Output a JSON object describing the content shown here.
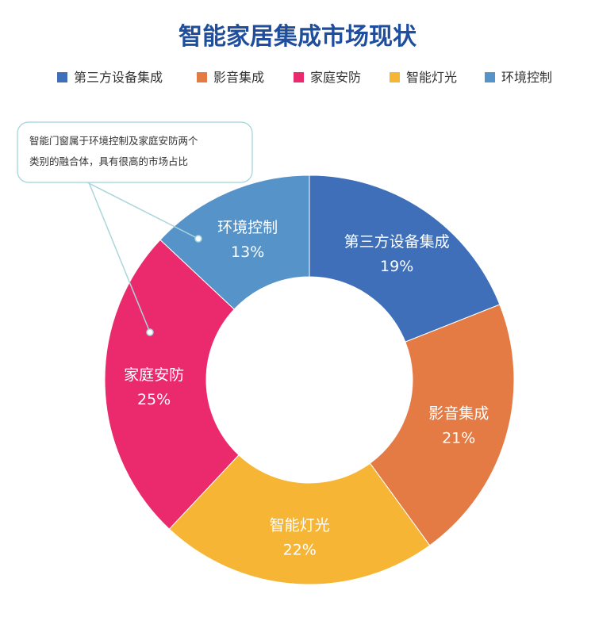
{
  "chart_data": {
    "type": "pie",
    "title": "智能家居集成市场现状",
    "donut": true,
    "legend_placement": "top",
    "categories": [
      "第三方设备集成",
      "影音集成",
      "家庭安防",
      "智能灯光",
      "环境控制"
    ],
    "slices": [
      {
        "name": "第三方设备集成",
        "value": 19,
        "label": "19%",
        "color": "#3e6fb8"
      },
      {
        "name": "影音集成",
        "value": 21,
        "label": "21%",
        "color": "#e47b45"
      },
      {
        "name": "智能灯光",
        "value": 22,
        "label": "22%",
        "color": "#f6b535"
      },
      {
        "name": "家庭安防",
        "value": 25,
        "label": "25%",
        "color": "#ea2a6c"
      },
      {
        "name": "环境控制",
        "value": 13,
        "label": "13%",
        "color": "#5693c9"
      }
    ],
    "annotation": {
      "lines": [
        "智能门窗属于环境控制及家庭安防两个",
        "类别的融合体，具有很高的市场占比"
      ]
    }
  },
  "colors": {
    "title": "#1f4e9c",
    "note_border": "#9ed3da",
    "leader_line": "#a8d6dc"
  }
}
